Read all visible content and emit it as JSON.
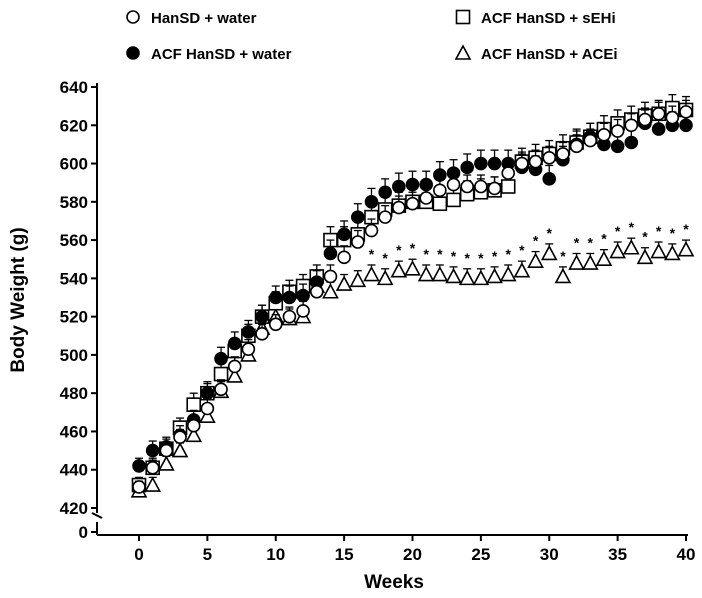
{
  "chart_data": {
    "type": "scatter",
    "xlabel": "Weeks",
    "ylabel": "Body Weight (g)",
    "xlim": [
      -3,
      40
    ],
    "ylim": [
      420,
      640
    ],
    "y_axis_break": true,
    "y_axis_zero_label": "0",
    "x_ticks": [
      0,
      5,
      10,
      15,
      20,
      25,
      30,
      35,
      40
    ],
    "y_ticks": [
      420,
      440,
      460,
      480,
      500,
      520,
      540,
      560,
      580,
      600,
      620,
      640
    ],
    "legend_position": "top",
    "significance_marker": "*",
    "significance_weeks": [
      17,
      18,
      19,
      20,
      21,
      22,
      23,
      24,
      25,
      26,
      27,
      28,
      29,
      30,
      31,
      32,
      33,
      34,
      35,
      36,
      37,
      38,
      39,
      40
    ],
    "series": [
      {
        "name": "HanSD + water",
        "marker": "open-circle",
        "x": [
          0,
          1,
          2,
          3,
          4,
          5,
          6,
          7,
          8,
          9,
          10,
          11,
          12,
          13,
          14,
          15,
          16,
          17,
          18,
          19,
          20,
          21,
          22,
          23,
          24,
          25,
          26,
          27,
          28,
          29,
          30,
          31,
          32,
          33,
          34,
          35,
          36,
          37,
          38,
          39,
          40
        ],
        "y": [
          431,
          441,
          450,
          457,
          463,
          472,
          482,
          494,
          503,
          511,
          516,
          520,
          523,
          533,
          541,
          551,
          559,
          565,
          572,
          577,
          579,
          582,
          586,
          589,
          588,
          588,
          587,
          595,
          600,
          601,
          603,
          605,
          609,
          612,
          615,
          617,
          620,
          623,
          626,
          624,
          627
        ],
        "err": [
          3,
          4,
          4,
          4,
          5,
          5,
          5,
          5,
          5,
          5,
          5,
          5,
          5,
          5,
          6,
          6,
          6,
          6,
          6,
          6,
          6,
          6,
          6,
          6,
          6,
          6,
          6,
          6,
          6,
          6,
          6,
          6,
          6,
          6,
          6,
          6,
          6,
          6,
          6,
          6,
          6
        ]
      },
      {
        "name": "ACF HanSD + water",
        "marker": "filled-circle",
        "x": [
          0,
          1,
          2,
          3,
          4,
          5,
          6,
          7,
          8,
          9,
          10,
          11,
          12,
          13,
          14,
          15,
          16,
          17,
          18,
          19,
          20,
          21,
          22,
          23,
          24,
          25,
          26,
          27,
          28,
          29,
          30,
          31,
          32,
          33,
          34,
          35,
          36,
          37,
          38,
          39,
          40
        ],
        "y": [
          442,
          450,
          452,
          458,
          466,
          480,
          498,
          506,
          512,
          520,
          530,
          530,
          531,
          538,
          553,
          563,
          572,
          580,
          585,
          588,
          589,
          589,
          594,
          595,
          598,
          600,
          600,
          600,
          598,
          597,
          592,
          602,
          610,
          614,
          610,
          609,
          611,
          621,
          618,
          620,
          620
        ],
        "err": [
          4,
          5,
          5,
          5,
          5,
          5,
          6,
          6,
          6,
          6,
          6,
          6,
          6,
          6,
          7,
          7,
          7,
          7,
          7,
          7,
          7,
          7,
          7,
          7,
          7,
          7,
          7,
          7,
          7,
          7,
          7,
          7,
          7,
          7,
          7,
          7,
          7,
          7,
          7,
          7,
          7
        ]
      },
      {
        "name": "ACF HanSD + sEHi",
        "marker": "open-square",
        "x": [
          0,
          1,
          2,
          3,
          4,
          5,
          6,
          7,
          8,
          9,
          10,
          11,
          12,
          13,
          14,
          15,
          16,
          17,
          18,
          19,
          20,
          21,
          22,
          23,
          24,
          25,
          26,
          27,
          28,
          29,
          30,
          31,
          32,
          33,
          34,
          35,
          36,
          37,
          38,
          39,
          40
        ],
        "y": [
          432,
          441,
          451,
          462,
          474,
          480,
          490,
          502,
          510,
          520,
          527,
          533,
          536,
          541,
          560,
          560,
          563,
          572,
          576,
          578,
          580,
          580,
          579,
          581,
          584,
          585,
          586,
          588,
          601,
          603,
          605,
          608,
          611,
          614,
          618,
          621,
          623,
          625,
          626,
          629,
          628
        ],
        "err": [
          4,
          5,
          5,
          5,
          6,
          6,
          6,
          6,
          6,
          6,
          6,
          6,
          6,
          6,
          7,
          7,
          7,
          7,
          7,
          7,
          7,
          7,
          7,
          7,
          7,
          7,
          7,
          7,
          7,
          7,
          7,
          7,
          7,
          7,
          7,
          7,
          7,
          7,
          7,
          7,
          7
        ]
      },
      {
        "name": "ACF HanSD + ACEi",
        "marker": "open-triangle",
        "x": [
          0,
          1,
          2,
          3,
          4,
          5,
          6,
          7,
          8,
          9,
          10,
          11,
          12,
          13,
          14,
          15,
          16,
          17,
          18,
          19,
          20,
          21,
          22,
          23,
          24,
          25,
          26,
          27,
          28,
          29,
          30,
          31,
          32,
          33,
          34,
          35,
          36,
          37,
          38,
          39,
          40
        ],
        "y": [
          429,
          432,
          443,
          450,
          458,
          468,
          481,
          489,
          500,
          514,
          520,
          519,
          520,
          536,
          533,
          537,
          539,
          542,
          540,
          544,
          545,
          542,
          542,
          541,
          540,
          540,
          541,
          542,
          544,
          549,
          553,
          541,
          548,
          548,
          550,
          554,
          556,
          551,
          554,
          553,
          555
        ],
        "err": [
          3,
          4,
          4,
          4,
          5,
          5,
          5,
          5,
          5,
          5,
          5,
          5,
          5,
          5,
          5,
          5,
          5,
          5,
          5,
          5,
          5,
          5,
          5,
          5,
          5,
          5,
          5,
          5,
          5,
          5,
          5,
          5,
          5,
          5,
          5,
          5,
          5,
          5,
          5,
          5,
          5
        ]
      }
    ]
  }
}
